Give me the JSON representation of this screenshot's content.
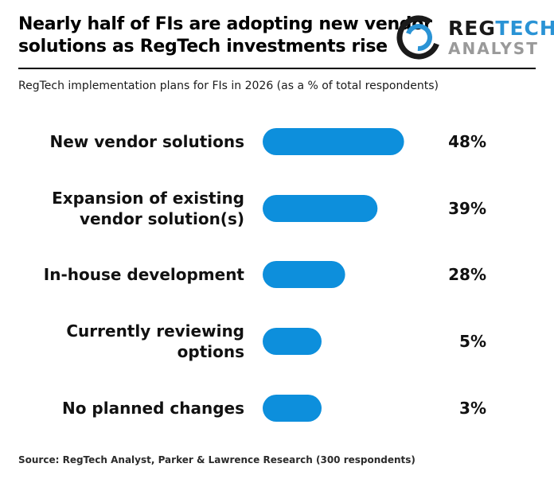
{
  "header": {
    "title_lines": [
      "Nearly half of FIs are adopting new vendor",
      "solutions as RegTech investments rise"
    ],
    "subtitle": "RegTech implementation plans for FIs in 2026 (as a % of total respondents)"
  },
  "logo": {
    "brand_part1": "REG",
    "brand_part2": "TECH",
    "brand_sub": "ANALYST",
    "accent_color": "#2a93d5",
    "ring_color": "#1a1a1a"
  },
  "chart_data": {
    "type": "bar",
    "orientation": "horizontal",
    "categories": [
      [
        "New vendor solutions"
      ],
      [
        "Expansion of existing",
        "vendor solution(s)"
      ],
      [
        "In-house development"
      ],
      [
        "Currently reviewing",
        "options"
      ],
      [
        "No planned changes"
      ]
    ],
    "values": [
      48,
      39,
      28,
      5,
      3
    ],
    "value_labels": [
      "48%",
      "39%",
      "28%",
      "5%",
      "3%"
    ],
    "bar_color": "#0d8fdc",
    "grid": false,
    "legend": "none"
  },
  "footer": {
    "source": "Source: RegTech Analyst, Parker & Lawrence Research (300 respondents)"
  }
}
